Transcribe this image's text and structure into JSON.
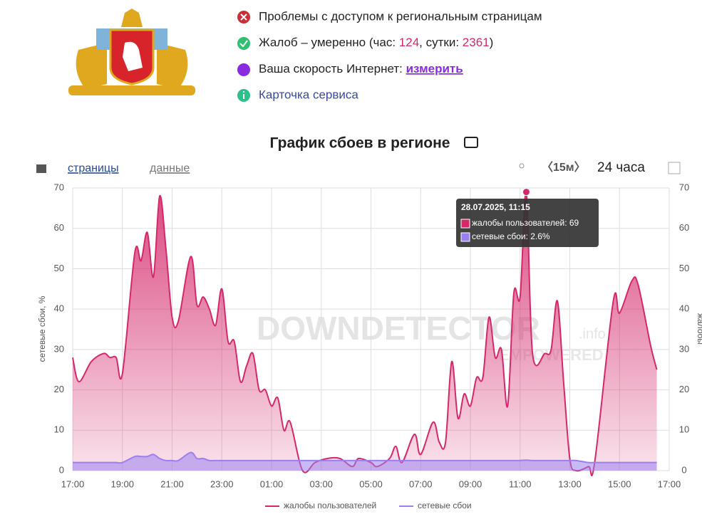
{
  "status": {
    "access": "Проблемы с доступом к региональным страницам",
    "complaints": {
      "prefix": "Жалоб – умеренно (час: ",
      "hour": 124,
      "mid": ", сутки: ",
      "day": 2361,
      "suffix": ")"
    },
    "speed": {
      "label": "Ваша скорость Интернет: ",
      "link": "измерить"
    },
    "card": "Карточка сервиса"
  },
  "toolbar": {
    "tabs": [
      "страницы",
      "данные"
    ],
    "interval": "〈15м〉",
    "range": "24 часа"
  },
  "chart_data": {
    "type": "area",
    "title": "График сбоев в регионе",
    "ylabel": "сетевые сбои, %",
    "y2label": "жалобы",
    "watermark": [
      "DOWNDETECTOR",
      ".info",
      "EMPOWERED"
    ],
    "x": [
      "17:00",
      "17:15",
      "17:45",
      "18:15",
      "18:30",
      "18:45",
      "19:00",
      "19:30",
      "19:45",
      "20:00",
      "20:15",
      "20:30",
      "20:45",
      "21:00",
      "21:15",
      "21:45",
      "22:00",
      "22:15",
      "22:30",
      "22:45",
      "23:00",
      "23:15",
      "23:30",
      "23:45",
      "00:00",
      "00:15",
      "00:30",
      "00:45",
      "01:00",
      "01:15",
      "01:30",
      "01:45",
      "02:15",
      "02:45",
      "03:15",
      "03:45",
      "04:15",
      "04:30",
      "05:00",
      "05:15",
      "05:45",
      "06:00",
      "06:15",
      "06:45",
      "07:00",
      "07:30",
      "07:45",
      "08:00",
      "08:15",
      "08:30",
      "08:45",
      "09:00",
      "09:15",
      "09:30",
      "09:45",
      "10:00",
      "10:15",
      "10:30",
      "10:45",
      "11:00",
      "11:15",
      "11:30",
      "12:00",
      "12:15",
      "12:30",
      "12:45",
      "13:00",
      "13:15",
      "13:45",
      "14:00",
      "14:45",
      "15:00",
      "15:30",
      "15:45",
      "16:15",
      "16:30"
    ],
    "series": [
      {
        "name": "жалобы пользователей",
        "color": "#d4286a",
        "axis": "y2",
        "values": [
          28,
          22,
          27,
          29,
          28,
          28,
          24,
          54,
          52,
          59,
          48,
          68,
          55,
          38,
          37,
          53,
          41,
          43,
          40,
          36,
          45,
          32,
          32,
          22,
          26,
          29,
          20,
          20,
          16,
          18,
          10,
          12,
          0,
          2,
          3,
          3,
          1,
          3,
          2,
          1,
          3,
          6,
          2,
          9,
          4,
          12,
          7,
          7,
          27,
          13,
          19,
          16,
          23,
          23,
          38,
          28,
          30,
          16,
          44,
          43,
          69,
          29,
          29,
          30,
          42,
          22,
          3,
          0,
          1,
          2,
          42,
          39,
          47,
          46,
          31,
          25
        ]
      },
      {
        "name": "сетевые сбои",
        "color": "#9b7ff0",
        "values": [
          2,
          2,
          2,
          2,
          2,
          2,
          2,
          3.5,
          3.5,
          3.5,
          4,
          3,
          2.5,
          2.5,
          2.5,
          4.5,
          3,
          3,
          2.5,
          2.5,
          2.5,
          2.5,
          2.5,
          2.5,
          2.5,
          2.5,
          2.5,
          2.5,
          2.5,
          2.5,
          2.5,
          2.5,
          2.5,
          2.5,
          2.5,
          2.5,
          2.5,
          2.5,
          2.5,
          2.5,
          2.5,
          2.5,
          2.5,
          2.5,
          2.5,
          2.5,
          2.5,
          2.5,
          2.5,
          2.5,
          2.5,
          2.5,
          2.5,
          2.5,
          2.5,
          2.5,
          2.5,
          2.5,
          2.5,
          2.5,
          2.6,
          2.5,
          2.5,
          2.5,
          2.5,
          2.5,
          2.5,
          2.5,
          2,
          2,
          2,
          2,
          2,
          2,
          2,
          2
        ]
      }
    ],
    "xlim": [
      "17:00",
      "17:00"
    ],
    "xticks": [
      "17:00",
      "19:00",
      "21:00",
      "23:00",
      "01:00",
      "03:00",
      "05:00",
      "07:00",
      "09:00",
      "11:00",
      "13:00",
      "15:00",
      "17:00"
    ],
    "ylim": [
      0,
      70
    ],
    "yticks": [
      0,
      10,
      20,
      30,
      40,
      50,
      60,
      70
    ],
    "y2lim": [
      0,
      70
    ],
    "y2ticks": [
      0,
      10,
      20,
      30,
      40,
      50,
      60,
      70
    ],
    "grid": true,
    "tooltip": {
      "title": "28.07.2025, 11:15",
      "lines": [
        "жалобы пользователей: 69",
        "сетевые сбои: 2.6%"
      ]
    }
  }
}
